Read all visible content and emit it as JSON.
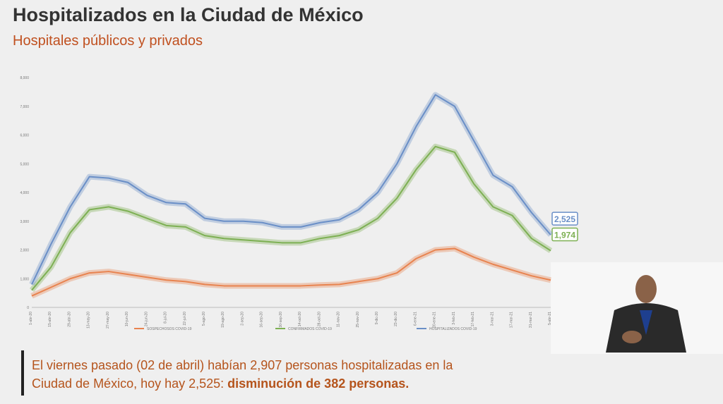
{
  "header": {
    "title": "Hospitalizados en la Ciudad de México",
    "subtitle": "Hospitales públicos y privados"
  },
  "chart_data": {
    "type": "line",
    "categories": [
      "1-abr-20",
      "15-abr-20",
      "29-abr-20",
      "13-may-20",
      "27-may-20",
      "10-jun-20",
      "24-jun-20",
      "8-jul-20",
      "22-jul-20",
      "5-ago-20",
      "19-ago-20",
      "2-sep-20",
      "16-sep-20",
      "30-sep-20",
      "14-oct-20",
      "28-oct-20",
      "11-nov-20",
      "25-nov-20",
      "9-dic-20",
      "23-dic-20",
      "6-ene-21",
      "20-ene-21",
      "3-feb-21",
      "17-feb-21",
      "3-mar-21",
      "17-mar-21",
      "31-mar-21",
      "5-abr-21"
    ],
    "series": [
      {
        "name": "SOSPECHOSOS COVID-19",
        "color": "#e8834f",
        "values": [
          400,
          700,
          1000,
          1200,
          1250,
          1150,
          1050,
          950,
          900,
          800,
          750,
          750,
          750,
          750,
          750,
          780,
          800,
          900,
          1000,
          1200,
          1700,
          2000,
          2050,
          1750,
          1500,
          1300,
          1100,
          950
        ]
      },
      {
        "name": "CONFIRMADOS COVID-19",
        "color": "#7db053",
        "values": [
          600,
          1400,
          2600,
          3400,
          3500,
          3350,
          3100,
          2850,
          2800,
          2500,
          2400,
          2350,
          2300,
          2250,
          2250,
          2400,
          2500,
          2700,
          3100,
          3800,
          4800,
          5600,
          5400,
          4300,
          3500,
          3200,
          2400,
          1974
        ],
        "value_labels": [
          null,
          null,
          null,
          null,
          null,
          null,
          null,
          null,
          null,
          null,
          null,
          null,
          null,
          null,
          null,
          null,
          null,
          null,
          null,
          null,
          null,
          null,
          null,
          null,
          null,
          null,
          null,
          "1,974"
        ]
      },
      {
        "name": "HOSPITALIZADOS COVID-19",
        "color": "#6a8fc7",
        "values": [
          800,
          2200,
          3500,
          4550,
          4500,
          4350,
          3900,
          3650,
          3600,
          3100,
          3000,
          3000,
          2950,
          2800,
          2800,
          2950,
          3050,
          3400,
          4000,
          5000,
          6300,
          7400,
          7000,
          5800,
          4600,
          4200,
          3300,
          2525
        ],
        "value_labels": [
          null,
          null,
          null,
          null,
          null,
          null,
          null,
          null,
          null,
          null,
          null,
          null,
          null,
          null,
          null,
          null,
          null,
          null,
          null,
          null,
          null,
          null,
          null,
          null,
          null,
          null,
          null,
          "2,525"
        ]
      }
    ],
    "ylim": [
      0,
      8000
    ],
    "yticks": [
      0,
      {
        "value": 1000,
        "label": "1,000"
      },
      {
        "value": 2000,
        "label": "2,000"
      },
      {
        "value": 3000,
        "label": "3,000"
      },
      {
        "value": 4000,
        "label": "4,000"
      },
      {
        "value": 5000,
        "label": "5,000"
      },
      {
        "value": 6000,
        "label": "6,000"
      },
      {
        "value": 7000,
        "label": "7,000"
      },
      {
        "value": 8000,
        "label": "8,000"
      }
    ],
    "grid": false,
    "legend": "bottom"
  },
  "caption": {
    "line1": "El viernes pasado (02 de abril) habían 2,907 personas hospitalizadas en la",
    "line2": "Ciudad de México, hoy hay 2,525: ",
    "bold": "disminución de 382 personas."
  }
}
